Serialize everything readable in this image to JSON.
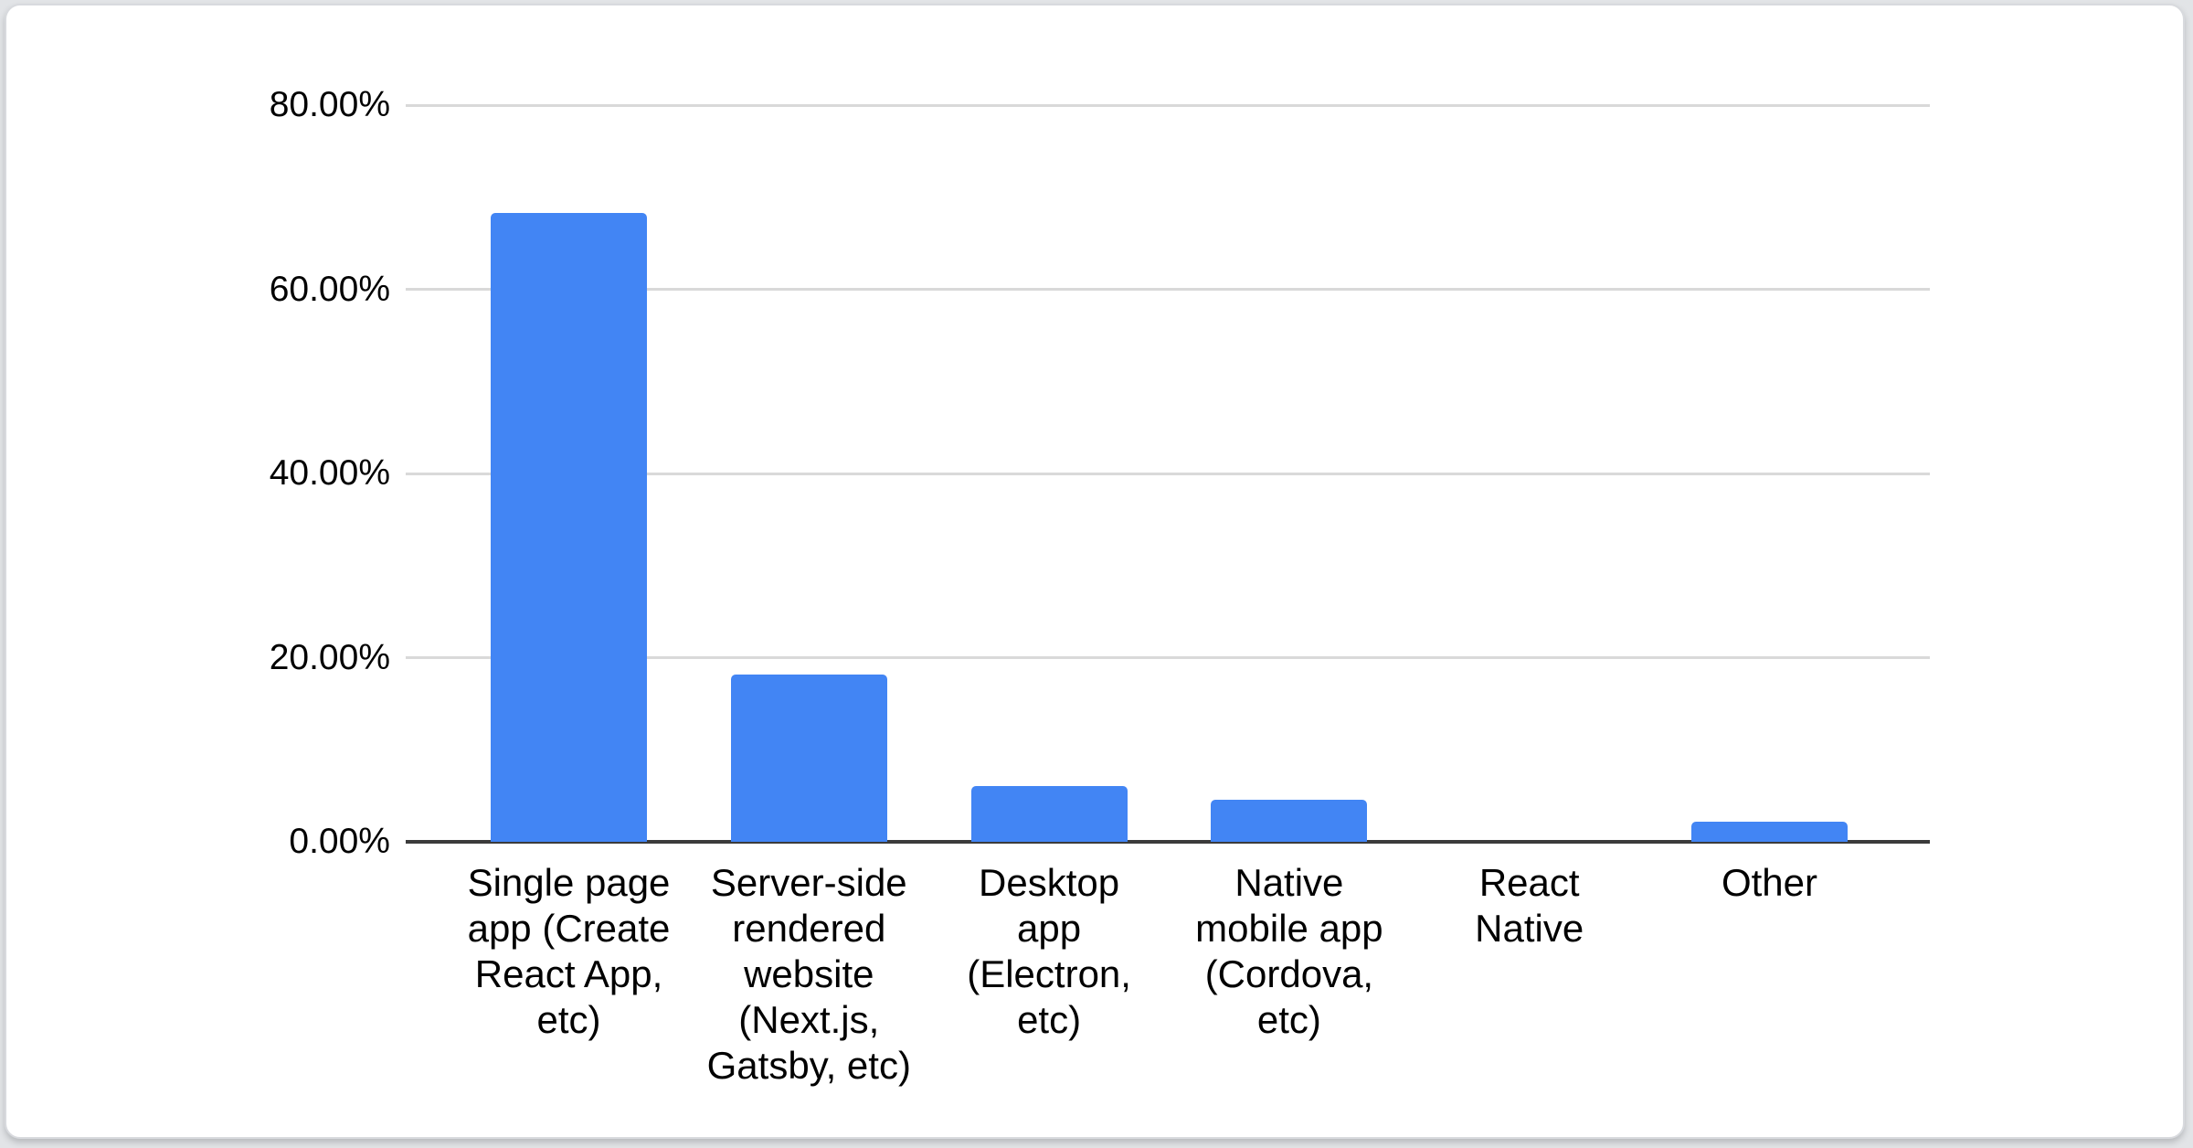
{
  "page": {
    "background_color": "#e2e4e7",
    "card_background_color": "#ffffff",
    "card_border_color": "#d8dade"
  },
  "chart_data": {
    "type": "bar",
    "title": "",
    "xlabel": "",
    "ylabel": "",
    "legend": "none",
    "grid": true,
    "categories": [
      "Single page app (Create React App, etc)",
      "Server-side rendered website (Next.js, Gatsby, etc)",
      "Desktop app (Electron, etc)",
      "Native mobile app (Cordova, etc)",
      "React Native",
      "Other"
    ],
    "x_tick_lines": [
      [
        "Single page",
        "app (Create",
        "React App,",
        "etc)"
      ],
      [
        "Server-side",
        "rendered",
        "website",
        "(Next.js,",
        "Gatsby, etc)"
      ],
      [
        "Desktop",
        "app",
        "(Electron,",
        "etc)"
      ],
      [
        "Native",
        "mobile app",
        "(Cordova,",
        "etc)"
      ],
      [
        "React",
        "Native"
      ],
      [
        "Other"
      ]
    ],
    "values": [
      68.3,
      18.2,
      6.1,
      4.6,
      0,
      2.2
    ],
    "unit": "%",
    "y_ticks": [
      "0.00%",
      "20.00%",
      "40.00%",
      "60.00%",
      "80.00%"
    ],
    "y_tick_values": [
      0,
      20,
      40,
      60,
      80
    ],
    "ylim": [
      0,
      80
    ],
    "bar_color": "#4285f4",
    "gridline_color": "#d9d9d9",
    "axis_line_color": "#3b3b3b",
    "text_color": "#000000"
  }
}
